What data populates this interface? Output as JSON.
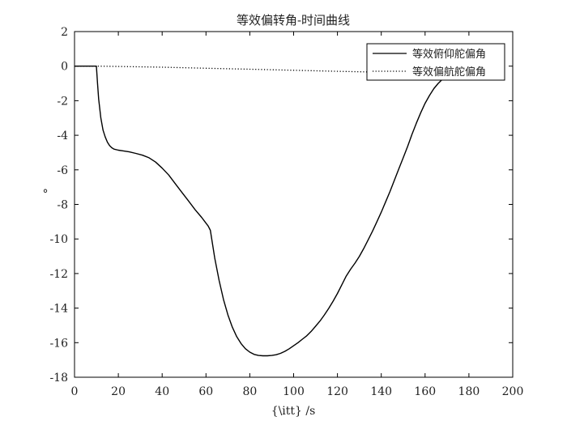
{
  "chart_data": {
    "type": "line",
    "title": "等效偏转角-时间曲线",
    "xlabel": "{\\itt} /s",
    "ylabel": "°",
    "xlim": [
      0,
      200
    ],
    "ylim": [
      -18,
      2
    ],
    "xticks": [
      0,
      20,
      40,
      60,
      80,
      100,
      120,
      140,
      160,
      180,
      200
    ],
    "yticks": [
      2,
      0,
      -2,
      -4,
      -6,
      -8,
      -10,
      -12,
      -14,
      -16,
      -18
    ],
    "grid": false,
    "legend": "top-right",
    "series": [
      {
        "name": "等效俯仰舵偏角",
        "style": "solid",
        "color": "#000000",
        "x": [
          0,
          10,
          10.5,
          11,
          12,
          13,
          14,
          15,
          16,
          17,
          18,
          20,
          22,
          25,
          28,
          31,
          34,
          37,
          40,
          43,
          46,
          49,
          52,
          55,
          58,
          61,
          62,
          63,
          64,
          66,
          68,
          70,
          72,
          74,
          76,
          78,
          80,
          82,
          84,
          86,
          88,
          90,
          92,
          94,
          96,
          98,
          100,
          102,
          104,
          106,
          108,
          110,
          112,
          114,
          116,
          118,
          120,
          122,
          124,
          126,
          128,
          130,
          132,
          134,
          136,
          138,
          140,
          142,
          144,
          146,
          148,
          150,
          152,
          154,
          156,
          158,
          160,
          162,
          164,
          166,
          168,
          170,
          172,
          174,
          176,
          177
        ],
        "y": [
          0,
          0,
          -1.0,
          -1.9,
          -3.0,
          -3.7,
          -4.1,
          -4.4,
          -4.6,
          -4.72,
          -4.8,
          -4.86,
          -4.9,
          -4.96,
          -5.05,
          -5.15,
          -5.3,
          -5.55,
          -5.9,
          -6.3,
          -6.8,
          -7.3,
          -7.8,
          -8.3,
          -8.75,
          -9.25,
          -9.5,
          -10.3,
          -11.1,
          -12.4,
          -13.5,
          -14.4,
          -15.1,
          -15.65,
          -16.05,
          -16.35,
          -16.55,
          -16.68,
          -16.74,
          -16.76,
          -16.76,
          -16.74,
          -16.7,
          -16.62,
          -16.5,
          -16.35,
          -16.18,
          -16.0,
          -15.8,
          -15.6,
          -15.35,
          -15.05,
          -14.75,
          -14.4,
          -14.02,
          -13.6,
          -13.15,
          -12.65,
          -12.15,
          -11.75,
          -11.4,
          -11.0,
          -10.55,
          -10.05,
          -9.55,
          -9.0,
          -8.45,
          -7.85,
          -7.25,
          -6.6,
          -5.95,
          -5.3,
          -4.65,
          -3.95,
          -3.3,
          -2.7,
          -2.15,
          -1.7,
          -1.3,
          -1.0,
          -0.75,
          -0.55,
          -0.38,
          -0.22,
          -0.08,
          0.0
        ]
      },
      {
        "name": "等效偏航舵偏角",
        "style": "dotted",
        "color": "#000000",
        "x": [
          0,
          10,
          20,
          40,
          60,
          80,
          100,
          120,
          140,
          150,
          160,
          170,
          180
        ],
        "y": [
          0,
          0,
          -0.02,
          -0.06,
          -0.12,
          -0.18,
          -0.24,
          -0.3,
          -0.35,
          -0.37,
          -0.38,
          -0.39,
          -0.4
        ]
      }
    ]
  }
}
